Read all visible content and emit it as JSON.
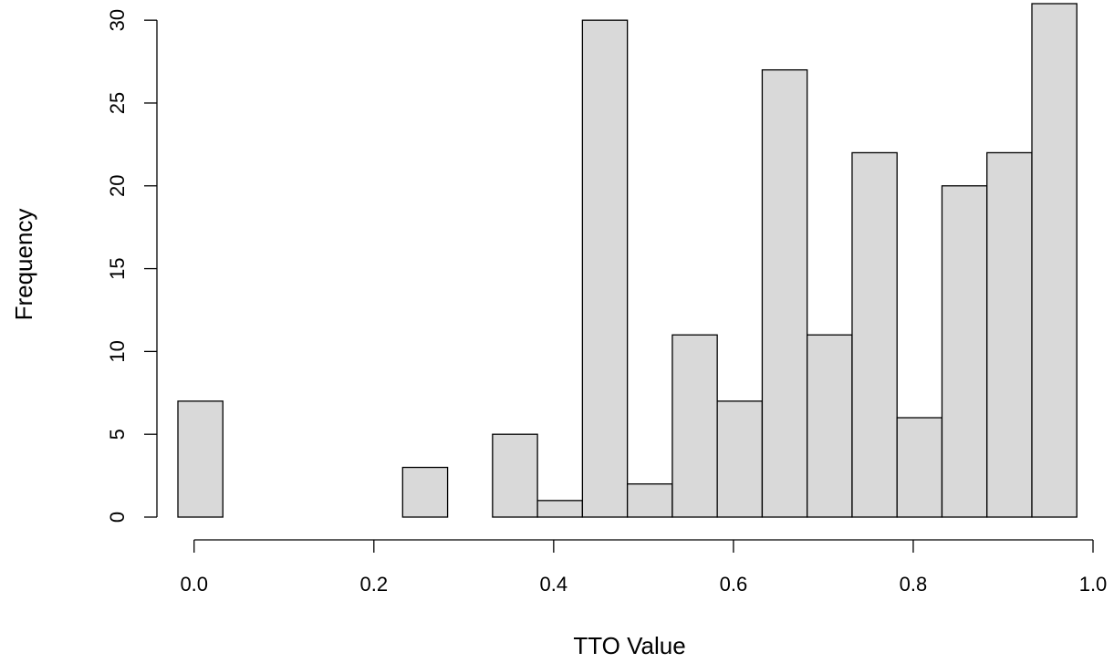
{
  "chart_data": {
    "type": "histogram",
    "x_label": "TTO Value",
    "y_label": "Frequency",
    "bins": [
      -0.018,
      0.032,
      0.082,
      0.132,
      0.182,
      0.232,
      0.282,
      0.332,
      0.382,
      0.432,
      0.482,
      0.532,
      0.582,
      0.632,
      0.682,
      0.732,
      0.782,
      0.832,
      0.882,
      0.932,
      0.982
    ],
    "values": [
      7,
      0,
      0,
      0,
      0,
      3,
      0,
      5,
      1,
      30,
      2,
      11,
      7,
      27,
      11,
      22,
      6,
      20,
      22,
      31
    ],
    "color": "#d9d9d9",
    "xlim": [
      -0.018,
      1.0
    ],
    "xticks": [
      {
        "value": 0,
        "label": "0.0"
      },
      0.2,
      0.4,
      0.6,
      0.8,
      {
        "value": 1,
        "label": "1.0"
      }
    ],
    "ylim": [
      0,
      31
    ],
    "yticks": [
      0,
      5,
      10,
      15,
      20,
      25,
      30
    ]
  }
}
